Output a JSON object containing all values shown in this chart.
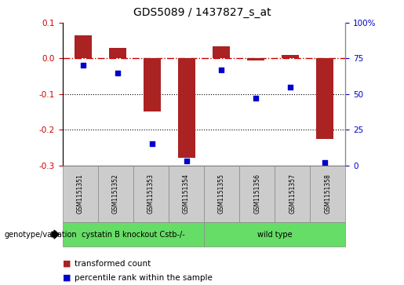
{
  "title": "GDS5089 / 1437827_s_at",
  "samples": [
    "GSM1151351",
    "GSM1151352",
    "GSM1151353",
    "GSM1151354",
    "GSM1151355",
    "GSM1151356",
    "GSM1151357",
    "GSM1151358"
  ],
  "transformed_count": [
    0.065,
    0.03,
    -0.15,
    -0.28,
    0.035,
    -0.005,
    0.01,
    -0.225
  ],
  "percentile_rank": [
    70,
    65,
    15,
    3,
    67,
    47,
    55,
    2
  ],
  "bar_color": "#aa2222",
  "dot_color": "#0000cc",
  "ylim_left": [
    -0.3,
    0.1
  ],
  "ylim_right": [
    0,
    100
  ],
  "yticks_left": [
    -0.3,
    -0.2,
    -0.1,
    0.0,
    0.1
  ],
  "yticks_right": [
    0,
    25,
    50,
    75,
    100
  ],
  "ytick_labels_right": [
    "0",
    "25",
    "50",
    "75",
    "100%"
  ],
  "group1_label": "cystatin B knockout Cstb-/-",
  "group2_label": "wild type",
  "group1_count": 4,
  "group2_count": 4,
  "group1_color": "#66dd66",
  "group2_color": "#66dd66",
  "legend_bar_label": "transformed count",
  "legend_dot_label": "percentile rank within the sample",
  "genotype_label": "genotype/variation",
  "background_color": "#ffffff",
  "plot_bg_color": "#ffffff",
  "zero_line_color": "#cc0000",
  "zero_line_style": "-.",
  "bar_width": 0.5,
  "sample_box_color": "#cccccc",
  "border_color": "#888888"
}
